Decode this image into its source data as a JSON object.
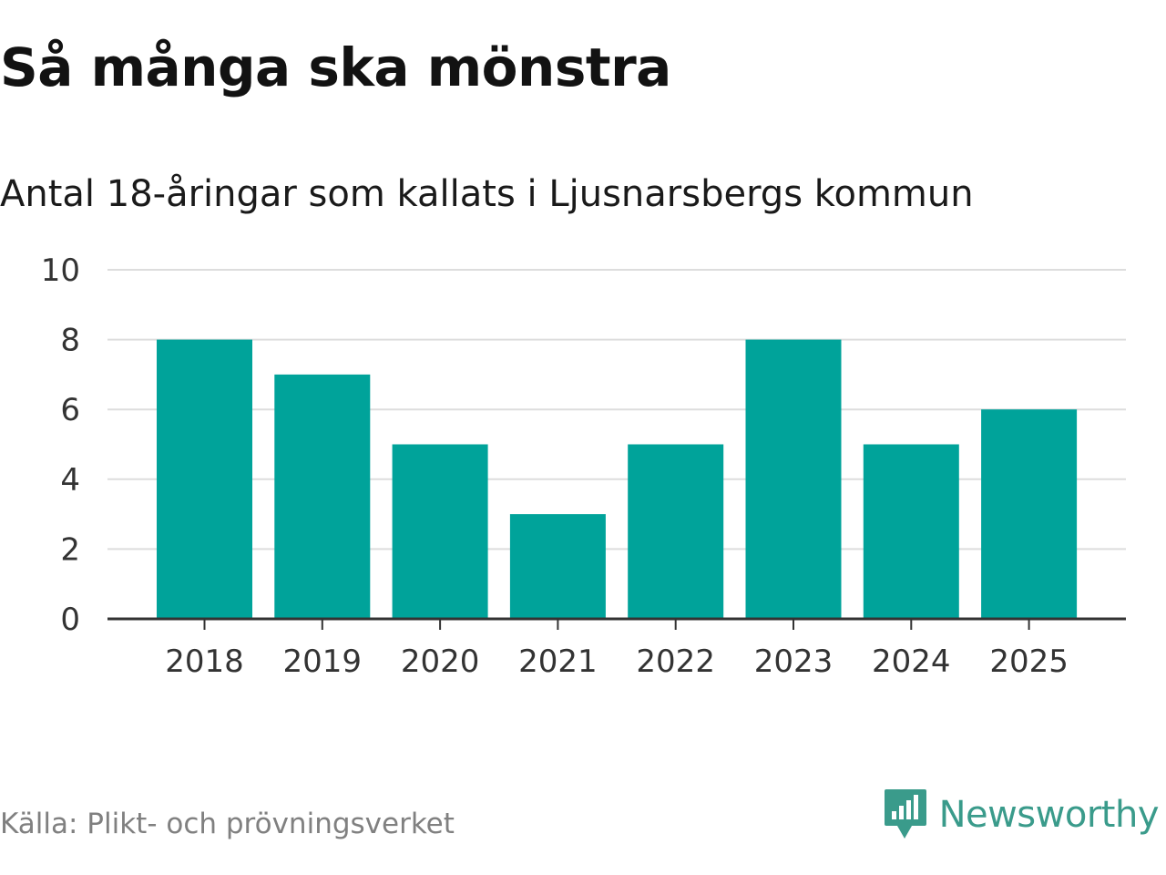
{
  "header": {
    "title": "Så många ska mönstra",
    "subtitle": "Antal 18-åringar som kallats i Ljusnarsbergs kommun"
  },
  "footer": {
    "source": "Källa: Plikt- och prövningsverket",
    "brand": "Newsworthy",
    "brand_icon": "bar-chart-speech-bubble-icon"
  },
  "colors": {
    "bar": "#00a39a",
    "grid": "#dddddd",
    "axis": "#333333",
    "brand": "#3a9b8b"
  },
  "chart_data": {
    "type": "bar",
    "title": "Så många ska mönstra",
    "subtitle": "Antal 18-åringar som kallats i Ljusnarsbergs kommun",
    "xlabel": "",
    "ylabel": "",
    "categories": [
      "2018",
      "2019",
      "2020",
      "2021",
      "2022",
      "2023",
      "2024",
      "2025"
    ],
    "values": [
      8,
      7,
      5,
      3,
      5,
      8,
      5,
      6
    ],
    "ylim": [
      0,
      10
    ],
    "yticks": [
      "0",
      "2",
      "4",
      "6",
      "8",
      "10"
    ],
    "grid": true,
    "legend": "none"
  }
}
